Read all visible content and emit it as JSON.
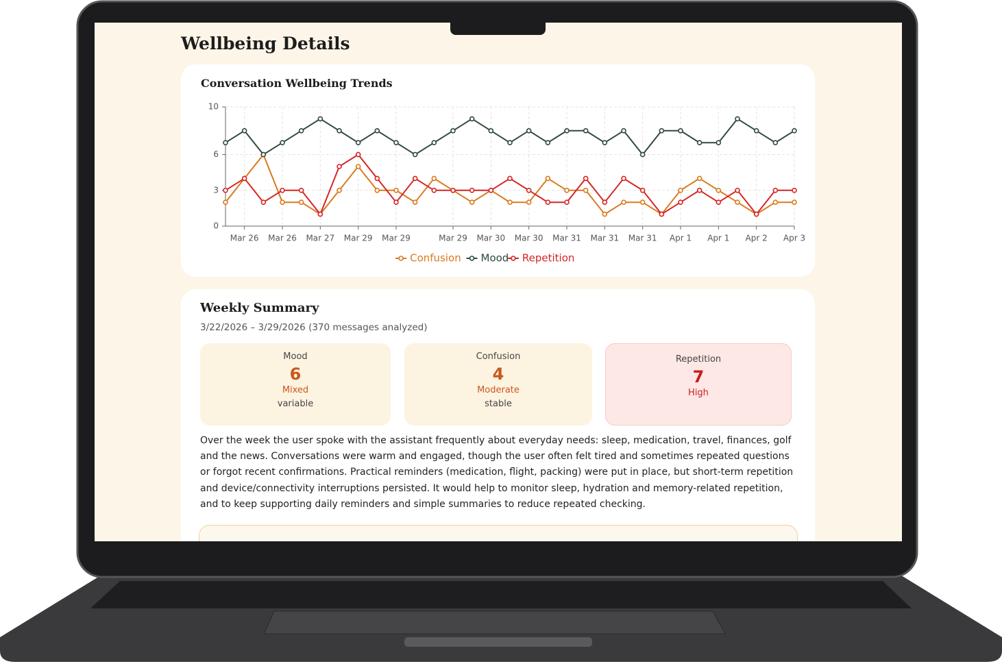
{
  "header": {
    "title": "Wellbeing Details"
  },
  "chart_data": {
    "type": "line",
    "title": "Conversation Wellbeing Trends",
    "categories": [
      null,
      "Mar 26",
      null,
      "Mar 26",
      null,
      "Mar 27",
      null,
      "Mar 29",
      null,
      "Mar 29",
      null,
      null,
      "Mar 29",
      null,
      "Mar 30",
      null,
      "Mar 30",
      null,
      "Mar 31",
      null,
      "Mar 31",
      null,
      "Mar 31",
      null,
      "Apr 1",
      null,
      "Apr 1",
      null,
      "Apr 2",
      null,
      "Apr 3"
    ],
    "series": [
      {
        "name": "Confusion",
        "color": "#d97a1c",
        "values": [
          2,
          4,
          6,
          2,
          2,
          1,
          3,
          5,
          3,
          3,
          2,
          4,
          3,
          2,
          3,
          2,
          2,
          4,
          3,
          3,
          1,
          2,
          2,
          1,
          3,
          4,
          3,
          2,
          1,
          2,
          2
        ]
      },
      {
        "name": "Mood",
        "color": "#2f4a3a",
        "values": [
          7,
          8,
          6,
          7,
          8,
          9,
          8,
          7,
          8,
          7,
          6,
          7,
          8,
          9,
          8,
          7,
          8,
          7,
          8,
          8,
          7,
          8,
          6,
          8,
          8,
          7,
          7,
          9,
          8,
          7,
          8
        ]
      },
      {
        "name": "Repetition",
        "color": "#d42525",
        "values": [
          3,
          4,
          2,
          3,
          3,
          1,
          5,
          6,
          4,
          2,
          4,
          3,
          3,
          3,
          3,
          4,
          3,
          2,
          2,
          4,
          2,
          4,
          3,
          1,
          2,
          3,
          2,
          3,
          1,
          3,
          3
        ]
      }
    ],
    "ylim": [
      0,
      10
    ],
    "yticks": [
      0,
      3,
      6,
      10
    ],
    "grid": true,
    "legend": "bottom"
  },
  "summary": {
    "title": "Weekly Summary",
    "range": "3/22/2026 – 3/29/2026 (370 messages analyzed)",
    "metrics": [
      {
        "label": "Mood",
        "value": 6,
        "level": "Mixed",
        "trend": "variable"
      },
      {
        "label": "Confusion",
        "value": 4,
        "level": "Moderate",
        "trend": "stable"
      },
      {
        "label": "Repetition",
        "value": 7,
        "level": "High"
      }
    ],
    "text": "Over the week the user spoke with the assistant frequently about everyday needs: sleep, medication, travel, finances, golf and the news. Conversations were warm and engaged, though the user often felt tired and sometimes repeated questions or forgot recent confirmations. Practical reminders (medication, flight, packing) were put in place, but short-term repetition and device/connectivity interruptions persisted. It would help to monitor sleep, hydration and memory-related repetition, and to keep supporting daily reminders and simple summaries to reduce repeated checking."
  }
}
